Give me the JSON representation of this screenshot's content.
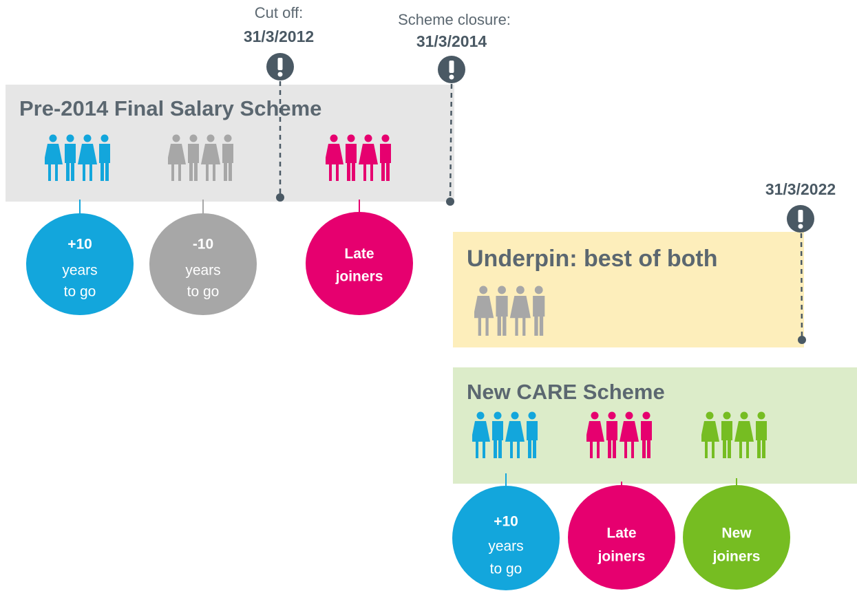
{
  "markers": [
    {
      "label": "Cut off:",
      "date": "31/3/2012"
    },
    {
      "label": "Scheme closure:",
      "date": "31/3/2014"
    },
    {
      "date": "31/3/2022"
    }
  ],
  "schemes": [
    {
      "title": "Pre-2014 Final Salary Scheme",
      "groups": [
        {
          "lines": [
            "+10",
            "years",
            "to go"
          ]
        },
        {
          "lines": [
            "-10",
            "years",
            "to go"
          ]
        },
        {
          "lines": [
            "Late",
            "joiners"
          ]
        }
      ]
    },
    {
      "title": "Underpin: best of both"
    },
    {
      "title": "New CARE Scheme",
      "groups": [
        {
          "lines": [
            "+10",
            "years",
            "to go"
          ]
        },
        {
          "lines": [
            "Late",
            "joiners"
          ]
        },
        {
          "lines": [
            "New",
            "joiners"
          ]
        }
      ]
    }
  ]
}
